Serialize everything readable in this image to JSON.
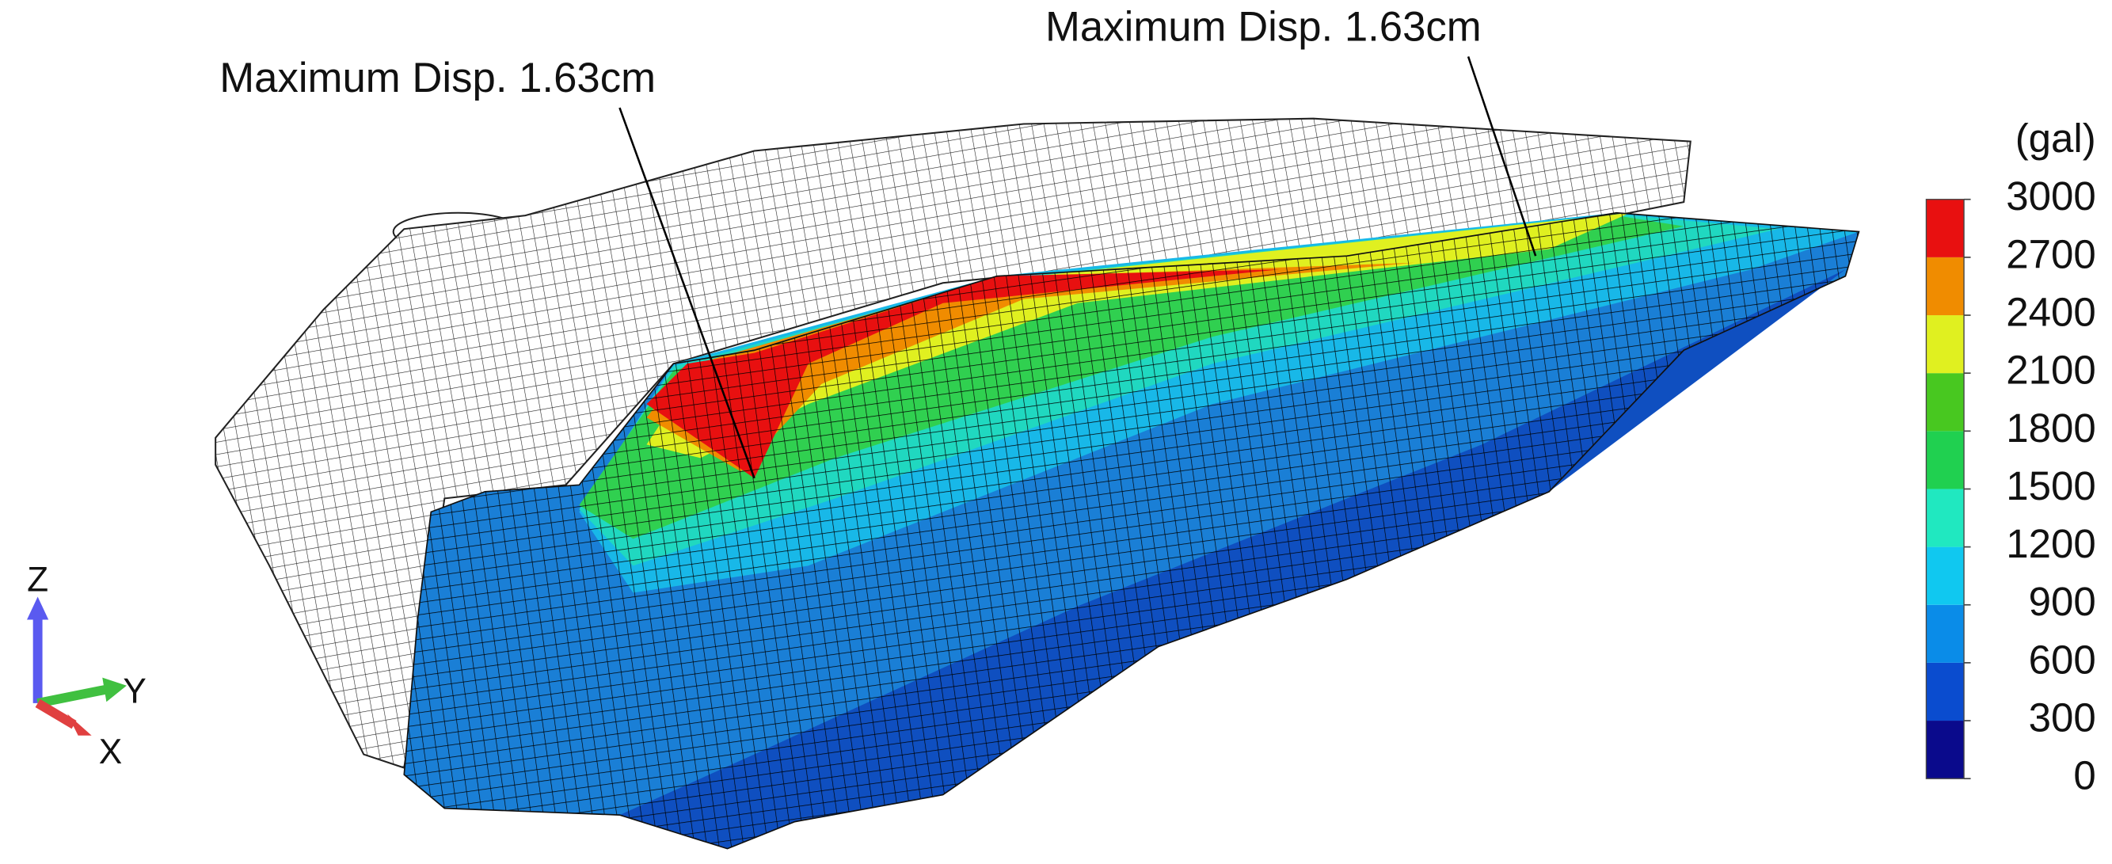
{
  "annotations": [
    {
      "label": "Maximum Disp. 1.63cm"
    },
    {
      "label": "Maximum Disp. 1.63cm"
    }
  ],
  "colorbar": {
    "unit": "(gal)",
    "levels": [
      0,
      300,
      600,
      900,
      1200,
      1500,
      1800,
      2100,
      2400,
      2700,
      3000
    ],
    "colors": [
      "#0a0a8c",
      "#0a4ccf",
      "#0a8ce8",
      "#10c8f0",
      "#20e8c0",
      "#20d050",
      "#48c820",
      "#e0f020",
      "#f08c00",
      "#e81010"
    ]
  },
  "triad": {
    "z": "Z",
    "y": "Y",
    "x": "X"
  }
}
